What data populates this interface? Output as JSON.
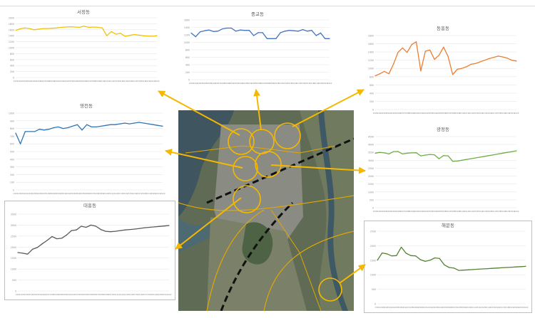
{
  "chart_data": [
    {
      "id": "seojeong",
      "type": "line",
      "title": "서정동",
      "color": "#f2c200",
      "categories": [
        "1991",
        "1992",
        "1993",
        "1994",
        "1995",
        "1996",
        "1997",
        "1998",
        "1999",
        "2000",
        "2001",
        "2002",
        "2003",
        "2004",
        "2005",
        "2006",
        "2007",
        "2008",
        "2009",
        "2010",
        "2011",
        "2012",
        "2013",
        "2014",
        "2015",
        "2016",
        "2017",
        "2018",
        "2019",
        "2020",
        "2021",
        "2022"
      ],
      "tick_labels": [
        "1991",
        "1992",
        "1993",
        "1994",
        "1995",
        "1996",
        "1997",
        "1998",
        "1999",
        "2000",
        "2001",
        "2002",
        "2003",
        "2004",
        "2005",
        "2006",
        "2007",
        "2008",
        "2009",
        "2010",
        "2011",
        "2012",
        "2013",
        "2014",
        "2015",
        "2016",
        "2017",
        "2018",
        "2019",
        "2020",
        "2021",
        "2022"
      ],
      "values": [
        1580,
        1630,
        1660,
        1640,
        1600,
        1620,
        1640,
        1640,
        1650,
        1660,
        1680,
        1690,
        1700,
        1690,
        1680,
        1720,
        1680,
        1690,
        1680,
        1660,
        1400,
        1540,
        1450,
        1480,
        1380,
        1410,
        1440,
        1420,
        1400,
        1390,
        1380,
        1400
      ],
      "ylim": [
        0,
        2000
      ],
      "yticks": [
        "0",
        "200",
        "400",
        "600",
        "800",
        "1000",
        "1200",
        "1400",
        "1600",
        "1800",
        "2000"
      ],
      "grid": true
    },
    {
      "id": "jungang",
      "type": "line",
      "title": "중교동",
      "color": "#4472c4",
      "categories": [
        "1991",
        "1992",
        "1993",
        "1994",
        "1995",
        "1996",
        "1997",
        "1998",
        "1999",
        "2000",
        "2001",
        "2002",
        "2003",
        "2004",
        "2005",
        "2006",
        "2007",
        "2008",
        "2009",
        "2010",
        "2011",
        "2012",
        "2013",
        "2014",
        "2015",
        "2016",
        "2017",
        "2018",
        "2019",
        "2020",
        "2021",
        "2022"
      ],
      "tick_labels": [
        "1991",
        "1992",
        "1993",
        "1994",
        "1995",
        "1996",
        "1997",
        "1998",
        "1999",
        "2000",
        "2001",
        "2002",
        "2003",
        "2004",
        "2005",
        "2006",
        "2007",
        "2008",
        "2009",
        "2010",
        "2011",
        "2012",
        "2013",
        "2014",
        "2015",
        "2016",
        "2017",
        "2018",
        "2019",
        "2020",
        "2021",
        "2022"
      ],
      "values": [
        1250,
        1150,
        1280,
        1310,
        1330,
        1290,
        1300,
        1360,
        1380,
        1380,
        1300,
        1330,
        1320,
        1320,
        1180,
        1260,
        1260,
        1100,
        1100,
        1100,
        1260,
        1300,
        1320,
        1310,
        1300,
        1340,
        1300,
        1320,
        1180,
        1250,
        1100,
        1100
      ],
      "ylim": [
        0,
        1600
      ],
      "yticks": [
        "0",
        "200",
        "400",
        "600",
        "800",
        "1000",
        "1200",
        "1400",
        "1600"
      ],
      "grid": true
    },
    {
      "id": "dongheung",
      "type": "line",
      "title": "동흥동",
      "color": "#ed7d31",
      "categories": [
        "1991",
        "1992",
        "1993",
        "1994",
        "1995",
        "1996",
        "1997",
        "1998",
        "1999",
        "2000",
        "2001",
        "2002",
        "2003",
        "2004",
        "2005",
        "2006",
        "2007",
        "2008",
        "2009",
        "2010",
        "2011",
        "2012",
        "2013",
        "2014",
        "2015",
        "2016",
        "2017",
        "2018",
        "2019",
        "2020",
        "2021",
        "2022"
      ],
      "tick_labels": [
        "1991",
        "1992",
        "1993",
        "1994",
        "1995",
        "1996",
        "1997",
        "1998",
        "1999",
        "2000",
        "2001",
        "2002",
        "2003",
        "2004",
        "2005",
        "2006",
        "2007",
        "2008",
        "2009",
        "2010",
        "2011",
        "2012",
        "2013",
        "2014",
        "2015",
        "2016",
        "2017",
        "2018",
        "2019",
        "2020",
        "2021",
        "2022"
      ],
      "values": [
        820,
        870,
        930,
        870,
        1100,
        1390,
        1500,
        1390,
        1580,
        1650,
        940,
        1420,
        1450,
        1220,
        1320,
        1520,
        1290,
        850,
        980,
        1000,
        1040,
        1100,
        1120,
        1160,
        1200,
        1240,
        1270,
        1300,
        1280,
        1250,
        1200,
        1180
      ],
      "ylim": [
        0,
        1800
      ],
      "yticks": [
        "0",
        "200",
        "400",
        "600",
        "800",
        "1000",
        "1200",
        "1400",
        "1600",
        "1800"
      ],
      "grid": true
    },
    {
      "id": "yeongcheon",
      "type": "line",
      "title": "영천동",
      "color": "#2e75b6",
      "categories": [
        "1991",
        "1992",
        "1993",
        "1994",
        "1995",
        "1996",
        "1997",
        "1998",
        "1999",
        "2000",
        "2001",
        "2002",
        "2003",
        "2004",
        "2005",
        "2006",
        "2007",
        "2008",
        "2009",
        "2010",
        "2011",
        "2012",
        "2013",
        "2014",
        "2015",
        "2016",
        "2017",
        "2018",
        "2019",
        "2020",
        "2021",
        "2022"
      ],
      "tick_labels": [
        "1991",
        "1992",
        "1993",
        "1994",
        "1995",
        "1996",
        "1997",
        "1998",
        "1999",
        "2000",
        "2001",
        "2002",
        "2003",
        "2004",
        "2005",
        "2006",
        "2007",
        "2008",
        "2009",
        "2010",
        "2011",
        "2012",
        "2013",
        "2014",
        "2015",
        "2016",
        "2017",
        "2018",
        "2019",
        "2020",
        "2021",
        "2022"
      ],
      "values": [
        740,
        600,
        760,
        760,
        760,
        790,
        780,
        790,
        810,
        820,
        800,
        810,
        830,
        850,
        780,
        850,
        820,
        820,
        830,
        840,
        850,
        850,
        860,
        870,
        860,
        870,
        880,
        870,
        860,
        850,
        840,
        830
      ],
      "ylim": [
        0,
        1000
      ],
      "yticks": [
        "0",
        "100",
        "200",
        "300",
        "400",
        "500",
        "600",
        "700",
        "800",
        "900",
        "1000"
      ],
      "grid": true
    },
    {
      "id": "gwangjeong",
      "type": "line",
      "title": "광정동",
      "color": "#70ad47",
      "categories": [
        "1991",
        "1992",
        "1993",
        "1994",
        "1995",
        "1996",
        "1997",
        "1998",
        "1999",
        "2000",
        "2001",
        "2002",
        "2003",
        "2004",
        "2005",
        "2006",
        "2007",
        "2008",
        "2009",
        "2010",
        "2011",
        "2012",
        "2013",
        "2014",
        "2015",
        "2016",
        "2017",
        "2018",
        "2019",
        "2020",
        "2021",
        "2022"
      ],
      "tick_labels": [
        "1991",
        "1992",
        "1993",
        "1994",
        "1995",
        "1996",
        "1997",
        "1998",
        "1999",
        "2000",
        "2001",
        "2002",
        "2003",
        "2004",
        "2005",
        "2006",
        "2007",
        "2008",
        "2009",
        "2010",
        "2011",
        "2012",
        "2013",
        "2014",
        "2015",
        "2016",
        "2017",
        "2018",
        "2019",
        "2020",
        "2021",
        "2022"
      ],
      "values": [
        3450,
        3500,
        3470,
        3400,
        3550,
        3560,
        3400,
        3450,
        3470,
        3480,
        3280,
        3330,
        3370,
        3350,
        3100,
        3300,
        3280,
        2940,
        2950,
        3000,
        3050,
        3100,
        3150,
        3200,
        3250,
        3300,
        3350,
        3400,
        3450,
        3500,
        3550,
        3600
      ],
      "ylim": [
        0,
        4500
      ],
      "yticks": [
        "0",
        "500",
        "1000",
        "1500",
        "2000",
        "2500",
        "3000",
        "3500",
        "4000",
        "4500"
      ],
      "grid": true
    },
    {
      "id": "daeheung",
      "type": "line",
      "title": "대흥동",
      "color": "#595959",
      "categories": [
        "1991",
        "1992",
        "1993",
        "1994",
        "1995",
        "1996",
        "1997",
        "1998",
        "1999",
        "2000",
        "2001",
        "2002",
        "2003",
        "2004",
        "2005",
        "2006",
        "2007",
        "2008",
        "2009",
        "2010",
        "2011",
        "2012",
        "2013",
        "2014",
        "2015",
        "2016",
        "2017",
        "2018",
        "2019",
        "2020",
        "2021",
        "2022"
      ],
      "tick_labels": [
        "1991",
        "1992",
        "1993",
        "1994",
        "1995",
        "1996",
        "1997",
        "1998",
        "1999",
        "2000",
        "2001",
        "2002",
        "2003",
        "2004",
        "2005",
        "2006",
        "2007",
        "2008",
        "2009",
        "2010",
        "2011",
        "2012",
        "2013",
        "2014",
        "2015",
        "2016",
        "2017",
        "2018",
        "2019",
        "2020",
        "2021",
        "2022"
      ],
      "values": [
        1750,
        1720,
        1680,
        1900,
        1980,
        2150,
        2300,
        2480,
        2380,
        2400,
        2550,
        2750,
        2780,
        2950,
        2900,
        3000,
        2950,
        2800,
        2720,
        2700,
        2720,
        2750,
        2780,
        2800,
        2820,
        2850,
        2880,
        2900,
        2920,
        2940,
        2960,
        2980
      ],
      "ylim": [
        0,
        3500
      ],
      "yticks": [
        "0",
        "500",
        "1000",
        "1500",
        "2000",
        "2500",
        "3000",
        "3500"
      ],
      "grid": true
    },
    {
      "id": "haemun",
      "type": "line",
      "title": "해문동",
      "color": "#548235",
      "categories": [
        "1991",
        "1992",
        "1993",
        "1994",
        "1995",
        "1996",
        "1997",
        "1998",
        "1999",
        "2000",
        "2001",
        "2002",
        "2003",
        "2004",
        "2005",
        "2006",
        "2007",
        "2008",
        "2009",
        "2010",
        "2011",
        "2012",
        "2013",
        "2014",
        "2015",
        "2016",
        "2017",
        "2018",
        "2019",
        "2020",
        "2021",
        "2022"
      ],
      "tick_labels": [
        "1991",
        "1992",
        "1993",
        "1994",
        "1995",
        "1996",
        "1997",
        "1998",
        "1999",
        "2000",
        "2001",
        "2002",
        "2003",
        "2004",
        "2005",
        "2006",
        "2007",
        "2008",
        "2009",
        "2010",
        "2011",
        "2012",
        "2013",
        "2014",
        "2015",
        "2016",
        "2017",
        "2018",
        "2019",
        "2020",
        "2021",
        "2022"
      ],
      "values": [
        1500,
        1750,
        1720,
        1650,
        1660,
        1950,
        1740,
        1660,
        1650,
        1520,
        1460,
        1500,
        1580,
        1560,
        1340,
        1250,
        1230,
        1150,
        1160,
        1170,
        1180,
        1190,
        1200,
        1210,
        1220,
        1230,
        1240,
        1250,
        1260,
        1270,
        1280,
        1290
      ],
      "ylim": [
        0,
        2500
      ],
      "yticks": [
        "0",
        "500",
        "1000",
        "1500",
        "2000",
        "2500"
      ],
      "grid": true
    }
  ],
  "colors": {
    "arrow": "#f5b800",
    "circle": "#f5b800",
    "road": "#e0a800",
    "rail": "#111111"
  }
}
